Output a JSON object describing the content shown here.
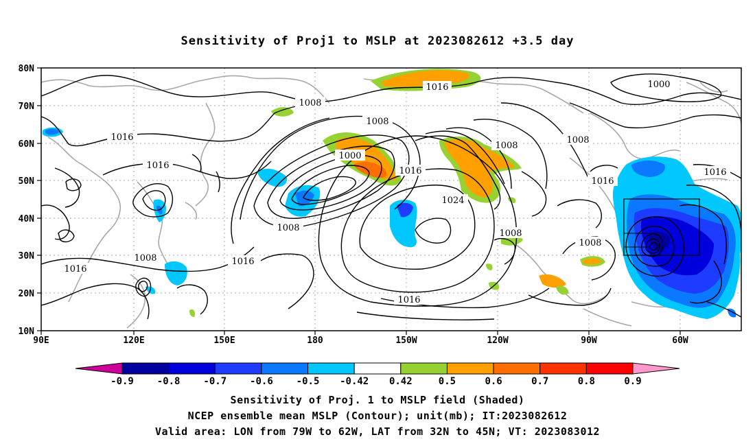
{
  "title": "Sensitivity of Proj1 to MSLP at 2023082612 +3.5 day",
  "lat_labels": [
    "80N",
    "70N",
    "60N",
    "50N",
    "40N",
    "30N",
    "20N",
    "10N"
  ],
  "lon_labels": [
    "90E",
    "120E",
    "150E",
    "180",
    "150W",
    "120W",
    "90W",
    "60W"
  ],
  "contour_labels": {
    "c1016_top": "1016",
    "c1000_ne": "1000",
    "c1008_a": "1008",
    "c1008_b": "1008",
    "c1016_w": "1016",
    "c1016_w2": "1016",
    "c1000_low": "1000",
    "c1016_mid": "1016",
    "c1008_e": "1008",
    "c1008_na": "1008",
    "c1016_ea": "1016",
    "c1016_na": "1016",
    "c1024": "1024",
    "c1008_low": "1008",
    "c1008_sw": "1008",
    "c1016_sw": "1016",
    "c1016_sw2": "1016",
    "c1008_cen": "1008",
    "c1008_gulf": "1008",
    "c1016_bottom": "1016"
  },
  "colorbar": {
    "labels": [
      "-0.9",
      "-0.8",
      "-0.7",
      "-0.6",
      "-0.5",
      "-0.42",
      "0.42",
      "0.5",
      "0.6",
      "0.7",
      "0.8",
      "0.9"
    ],
    "colors": [
      "#0000a0",
      "#0000dc",
      "#1e3cff",
      "#0a78ff",
      "#00c8ff",
      "#ffffff",
      "#96d232",
      "#ffa000",
      "#ff6e00",
      "#ff3200",
      "#ff0000"
    ],
    "under_color": "#cc0099",
    "over_color": "#ff99cc"
  },
  "caption": {
    "line1": "Sensitivity of Proj. 1 to MSLP field (Shaded)",
    "line2": "NCEP ensemble mean MSLP (Contour); unit(mb); IT:2023082612",
    "line3": "Valid area: LON from 79W to 62W, LAT from 32N to 45N; VT: 2023083012"
  }
}
